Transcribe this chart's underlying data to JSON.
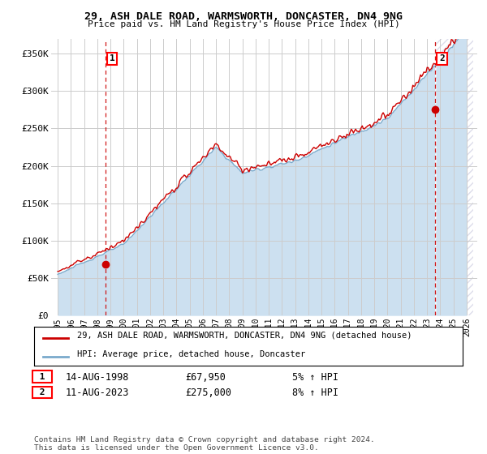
{
  "title_line1": "29, ASH DALE ROAD, WARMSWORTH, DONCASTER, DN4 9NG",
  "title_line2": "Price paid vs. HM Land Registry's House Price Index (HPI)",
  "ylabel_ticks": [
    "£0",
    "£50K",
    "£100K",
    "£150K",
    "£200K",
    "£250K",
    "£300K",
    "£350K"
  ],
  "ytick_values": [
    0,
    50000,
    100000,
    150000,
    200000,
    250000,
    300000,
    350000
  ],
  "ylim": [
    0,
    370000
  ],
  "x_start_year": 1995,
  "x_end_year": 2026,
  "sale1_year": 1998.617,
  "sale1_price": 67950,
  "sale2_year": 2023.617,
  "sale2_price": 275000,
  "sale1_label": "1",
  "sale2_label": "2",
  "property_color": "#cc0000",
  "hpi_color": "#7aaacc",
  "hpi_fill_color": "#cce0f0",
  "hatch_color": "#aaaacc",
  "legend_property": "29, ASH DALE ROAD, WARMSWORTH, DONCASTER, DN4 9NG (detached house)",
  "legend_hpi": "HPI: Average price, detached house, Doncaster",
  "annotation1_date": "14-AUG-1998",
  "annotation1_price": "£67,950",
  "annotation1_hpi": "5% ↑ HPI",
  "annotation2_date": "11-AUG-2023",
  "annotation2_price": "£275,000",
  "annotation2_hpi": "8% ↑ HPI",
  "footnote": "Contains HM Land Registry data © Crown copyright and database right 2024.\nThis data is licensed under the Open Government Licence v3.0.",
  "background_color": "#ffffff",
  "grid_color": "#cccccc"
}
